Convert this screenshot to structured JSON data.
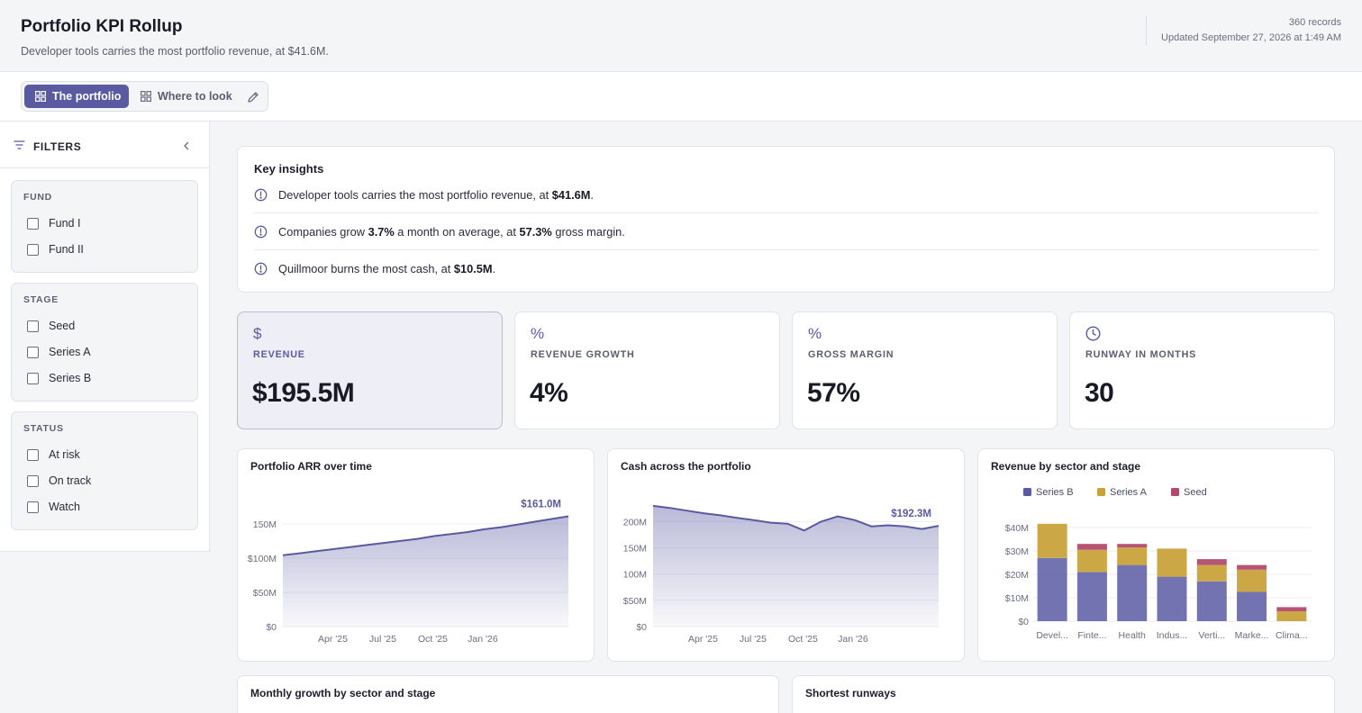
{
  "header": {
    "title": "Portfolio KPI Rollup",
    "subtitle": "Developer tools carries the most portfolio revenue, at $41.6M.",
    "records": "360 records",
    "updated": "Updated September 27, 2026 at 1:49 AM"
  },
  "tabs": [
    {
      "label": "The portfolio",
      "icon": "grid-icon",
      "active": true
    },
    {
      "label": "Where to look",
      "icon": "grid-icon",
      "active": false
    }
  ],
  "sidebar": {
    "title": "FILTERS",
    "groups": [
      {
        "title": "FUND",
        "options": [
          "Fund I",
          "Fund II"
        ]
      },
      {
        "title": "STAGE",
        "options": [
          "Seed",
          "Series A",
          "Series B"
        ]
      },
      {
        "title": "STATUS",
        "options": [
          "At risk",
          "On track",
          "Watch"
        ]
      }
    ]
  },
  "insights": {
    "title": "Key insights",
    "items": [
      {
        "pre": "Developer tools carries the most portfolio revenue, at ",
        "b1": "$41.6M",
        "mid": "",
        "b2": "",
        "post": "."
      },
      {
        "pre": "Companies grow ",
        "b1": "3.7%",
        "mid": " a month on average, at ",
        "b2": "57.3%",
        "post": " gross margin."
      },
      {
        "pre": "Quillmoor burns the most cash, at ",
        "b1": "$10.5M",
        "mid": "",
        "b2": "",
        "post": "."
      }
    ]
  },
  "kpis": [
    {
      "icon": "$",
      "label": "REVENUE",
      "value": "$195.5M",
      "active": true
    },
    {
      "icon": "%",
      "label": "REVENUE GROWTH",
      "value": "4%",
      "active": false
    },
    {
      "icon": "%",
      "label": "GROSS MARGIN",
      "value": "57%",
      "active": false
    },
    {
      "icon": "clock-icon",
      "label": "RUNWAY IN MONTHS",
      "value": "30",
      "active": false
    }
  ],
  "colors": {
    "accent": "#5a5aa3",
    "seriesB": "#5a5aa3",
    "seriesA": "#c9a23c",
    "seed": "#b34a6e"
  },
  "chart_data": [
    {
      "type": "area",
      "title": "Portfolio ARR over time",
      "x_ticks": [
        "Apr '25",
        "Jul '25",
        "Oct '25",
        "Jan '26"
      ],
      "y_ticks": [
        "$0",
        "$50M",
        "$100M",
        "150M"
      ],
      "ylim": [
        0,
        180
      ],
      "peak_label": "$161.0M",
      "values": [
        104,
        107,
        110,
        113,
        116,
        119,
        122,
        125,
        128,
        132,
        135,
        138,
        142,
        145,
        149,
        153,
        157,
        161
      ]
    },
    {
      "type": "area",
      "title": "Cash across the portfolio",
      "x_ticks": [
        "Apr '25",
        "Jul '25",
        "Oct '25",
        "Jan '26"
      ],
      "y_ticks": [
        "$0",
        "$50M",
        "100M",
        "150M",
        "200M"
      ],
      "ylim": [
        0,
        235
      ],
      "peak_label": "$192.3M",
      "values": [
        230,
        226,
        221,
        216,
        212,
        207,
        203,
        198,
        196,
        183,
        200,
        210,
        203,
        191,
        193,
        191,
        186,
        192
      ]
    },
    {
      "type": "bar",
      "title": "Revenue by sector and stage",
      "categories": [
        "Devel...",
        "Finte...",
        "Health",
        "Indus...",
        "Verti...",
        "Marke...",
        "Clima..."
      ],
      "y_ticks": [
        "$0",
        "$10M",
        "$20M",
        "$30M",
        "$40M"
      ],
      "ylim": [
        0,
        40
      ],
      "legend": [
        "Series B",
        "Series A",
        "Seed"
      ],
      "series": [
        {
          "name": "Series B",
          "values": [
            27,
            21,
            24,
            19,
            17,
            12.5,
            0
          ]
        },
        {
          "name": "Series A",
          "values": [
            14.6,
            9.5,
            7.5,
            12,
            7,
            9.5,
            4.2
          ]
        },
        {
          "name": "Seed",
          "values": [
            0,
            2.5,
            1.5,
            0,
            2.5,
            2,
            1.8
          ]
        }
      ]
    }
  ],
  "bottom": {
    "left_title": "Monthly growth by sector and stage",
    "right_title": "Shortest runways"
  }
}
